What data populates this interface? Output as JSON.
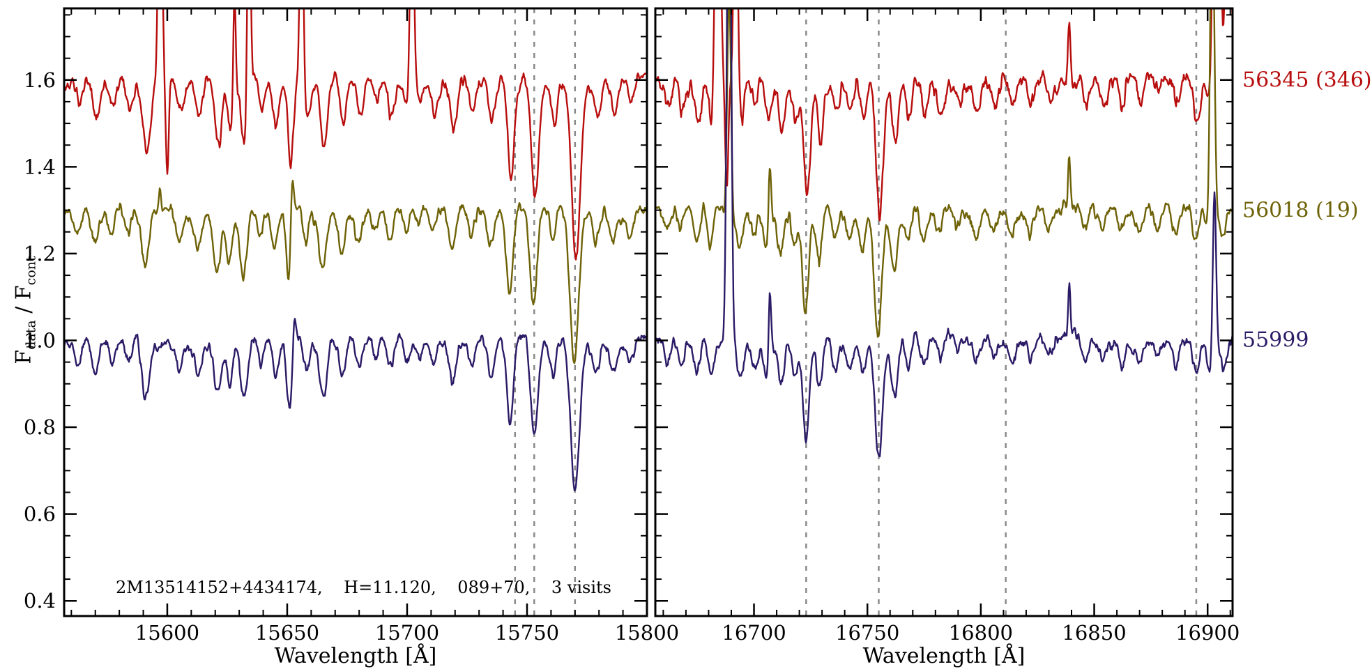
{
  "figure": {
    "background": "#ffffff",
    "axis_color": "#000000",
    "annotation": "2M13514152+4434174,    H=11.120,    089+70,    3 visits",
    "ylabel_parts": {
      "f1": "F",
      "sub1": "data",
      "sep": " / ",
      "f2": "F",
      "sub2": "cont"
    },
    "ylabel_plain": "F_data / F_cont"
  },
  "series_labels": [
    {
      "text": "56345 (346)",
      "color": "#b80d0d",
      "value": 1.6
    },
    {
      "text": "56018 (19)",
      "color": "#6e6207",
      "value": 1.3
    },
    {
      "text": "55999",
      "color": "#2b1a66",
      "value": 1.0
    }
  ],
  "chart_data": [
    {
      "id": "left",
      "type": "line",
      "title": "",
      "xlabel": "Wavelength [Å]",
      "ylabel": "F_data / F_cont",
      "xlim": [
        15557,
        15800
      ],
      "ylim": [
        0.365,
        1.765
      ],
      "xticks_major": [
        15600,
        15650,
        15700,
        15750,
        15800
      ],
      "xtick_minor_step": 10,
      "yticks_major": [
        0.4,
        0.6,
        0.8,
        1.0,
        1.2,
        1.4,
        1.6
      ],
      "ytick_minor_step": 0.05,
      "ytick_labels": true,
      "grid": false,
      "dashed_color": "#8a8a8a",
      "dashed_lines_x": [
        15745,
        15753,
        15770
      ],
      "absorption_lines": [
        [
          15563,
          0.05,
          1.3
        ],
        [
          15570,
          0.07,
          1.5
        ],
        [
          15577,
          0.05,
          1.2
        ],
        [
          15584,
          0.06,
          1.3
        ],
        [
          15591,
          0.12,
          1.6
        ],
        [
          15605,
          0.06,
          1.4
        ],
        [
          15613,
          0.07,
          1.4
        ],
        [
          15621,
          0.13,
          1.5
        ],
        [
          15626,
          0.1,
          1.2
        ],
        [
          15632,
          0.14,
          1.5
        ],
        [
          15639,
          0.06,
          1.2
        ],
        [
          15645,
          0.08,
          1.3
        ],
        [
          15651,
          0.16,
          1.1
        ],
        [
          15658,
          0.07,
          1.2
        ],
        [
          15665,
          0.12,
          1.5
        ],
        [
          15673,
          0.09,
          1.4
        ],
        [
          15680,
          0.07,
          1.3
        ],
        [
          15687,
          0.05,
          1.3
        ],
        [
          15693,
          0.08,
          1.4
        ],
        [
          15700,
          0.05,
          1.2
        ],
        [
          15705,
          0.04,
          1.2
        ],
        [
          15711,
          0.06,
          1.4
        ],
        [
          15719,
          0.08,
          1.4
        ],
        [
          15727,
          0.06,
          1.3
        ],
        [
          15735,
          0.07,
          1.3
        ],
        [
          15743,
          0.19,
          1.4
        ],
        [
          15753,
          0.21,
          1.5
        ],
        [
          15761,
          0.08,
          1.2
        ],
        [
          15770,
          0.33,
          1.8
        ],
        [
          15779,
          0.07,
          1.4
        ],
        [
          15786,
          0.06,
          1.3
        ],
        [
          15793,
          0.05,
          1.2
        ]
      ],
      "series": [
        {
          "name": "56345 (346)",
          "color": "#b80d0d",
          "offset": 0.6,
          "seed": 101,
          "noise": 0.012,
          "depth_scale": 1.22,
          "rv_shift": 0.4,
          "emission_spikes": [
            [
              15597,
              0.6,
              0.8
            ],
            [
              15628,
              0.25,
              0.5
            ],
            [
              15634,
              0.55,
              0.7
            ],
            [
              15656,
              0.5,
              0.7
            ],
            [
              15702,
              0.5,
              0.8
            ]
          ],
          "down_spikes": [
            [
              15600,
              0.22,
              0.6
            ]
          ]
        },
        {
          "name": "56018 (19)",
          "color": "#6e6207",
          "offset": 0.3,
          "seed": 202,
          "noise": 0.011,
          "depth_scale": 1.06,
          "rv_shift": -0.3,
          "emission_spikes": [
            [
              15652,
              0.14,
              0.6
            ],
            [
              15597,
              0.05,
              0.5
            ]
          ],
          "down_spikes": []
        },
        {
          "name": "55999",
          "color": "#2b1a66",
          "offset": 0.0,
          "seed": 303,
          "noise": 0.011,
          "depth_scale": 1.0,
          "rv_shift": 0.0,
          "emission_spikes": [
            [
              15653,
              0.09,
              0.6
            ]
          ],
          "down_spikes": []
        }
      ]
    },
    {
      "id": "right",
      "type": "line",
      "title": "",
      "xlabel": "Wavelength [Å]",
      "ylabel": "F_data / F_cont",
      "xlim": [
        16656.5,
        16911
      ],
      "ylim": [
        0.365,
        1.765
      ],
      "xticks_major": [
        16700,
        16750,
        16800,
        16850,
        16900
      ],
      "xtick_minor_step": 10,
      "yticks_major": [
        0.4,
        0.6,
        0.8,
        1.0,
        1.2,
        1.4,
        1.6
      ],
      "ytick_minor_step": 0.05,
      "ytick_labels": false,
      "grid": false,
      "dashed_color": "#8a8a8a",
      "dashed_lines_x": [
        16723,
        16755,
        16811,
        16895
      ],
      "absorption_lines": [
        [
          16662,
          0.06,
          1.4
        ],
        [
          16668,
          0.05,
          1.3
        ],
        [
          16675,
          0.07,
          1.4
        ],
        [
          16681,
          0.09,
          1.3
        ],
        [
          16694,
          0.08,
          1.4
        ],
        [
          16700,
          0.06,
          1.3
        ],
        [
          16706,
          0.08,
          1.4
        ],
        [
          16712,
          0.1,
          1.4
        ],
        [
          16718,
          0.08,
          1.3
        ],
        [
          16723,
          0.22,
          1.5
        ],
        [
          16729,
          0.11,
          1.3
        ],
        [
          16736,
          0.07,
          1.3
        ],
        [
          16742,
          0.06,
          1.3
        ],
        [
          16748,
          0.08,
          1.3
        ],
        [
          16755,
          0.27,
          1.6
        ],
        [
          16762,
          0.12,
          1.4
        ],
        [
          16768,
          0.07,
          1.3
        ],
        [
          16775,
          0.06,
          1.4
        ],
        [
          16782,
          0.05,
          1.3
        ],
        [
          16790,
          0.04,
          1.3
        ],
        [
          16798,
          0.05,
          1.3
        ],
        [
          16806,
          0.05,
          1.3
        ],
        [
          16814,
          0.04,
          1.3
        ],
        [
          16822,
          0.05,
          1.3
        ],
        [
          16830,
          0.04,
          1.3
        ],
        [
          16846,
          0.05,
          1.3
        ],
        [
          16854,
          0.04,
          1.3
        ],
        [
          16862,
          0.05,
          1.3
        ],
        [
          16870,
          0.04,
          1.3
        ],
        [
          16878,
          0.04,
          1.3
        ],
        [
          16886,
          0.05,
          1.3
        ],
        [
          16895,
          0.08,
          1.5
        ],
        [
          16901,
          0.07,
          1.3
        ],
        [
          16907,
          0.06,
          1.3
        ]
      ],
      "series": [
        {
          "name": "56345 (346)",
          "color": "#b80d0d",
          "offset": 0.6,
          "seed": 404,
          "noise": 0.016,
          "depth_scale": 1.22,
          "rv_shift": 0.4,
          "emission_spikes": [
            [
              16684,
              0.8,
              1.0
            ],
            [
              16692,
              0.6,
              0.8
            ],
            [
              16839,
              0.6,
              0.6
            ],
            [
              16904,
              0.9,
              1.4
            ],
            [
              16909,
              0.8,
              1.0
            ]
          ],
          "down_spikes": [
            [
              16688,
              0.25,
              0.7
            ],
            [
              16839,
              0.45,
              0.6
            ]
          ]
        },
        {
          "name": "56018 (19)",
          "color": "#6e6207",
          "offset": 0.3,
          "seed": 505,
          "noise": 0.012,
          "depth_scale": 1.06,
          "rv_shift": -0.3,
          "emission_spikes": [
            [
              16689,
              0.5,
              0.8
            ],
            [
              16707,
              0.16,
              0.6
            ],
            [
              16839,
              0.12,
              0.5
            ],
            [
              16902,
              0.8,
              0.9
            ]
          ],
          "down_spikes": []
        },
        {
          "name": "55999",
          "color": "#2b1a66",
          "offset": 0.0,
          "seed": 606,
          "noise": 0.012,
          "depth_scale": 1.0,
          "rv_shift": 0.0,
          "emission_spikes": [
            [
              16689,
              1.3,
              0.9
            ],
            [
              16707,
              0.18,
              0.6
            ],
            [
              16839,
              0.12,
              0.5
            ],
            [
              16903,
              0.38,
              0.7
            ]
          ],
          "down_spikes": []
        }
      ]
    }
  ]
}
